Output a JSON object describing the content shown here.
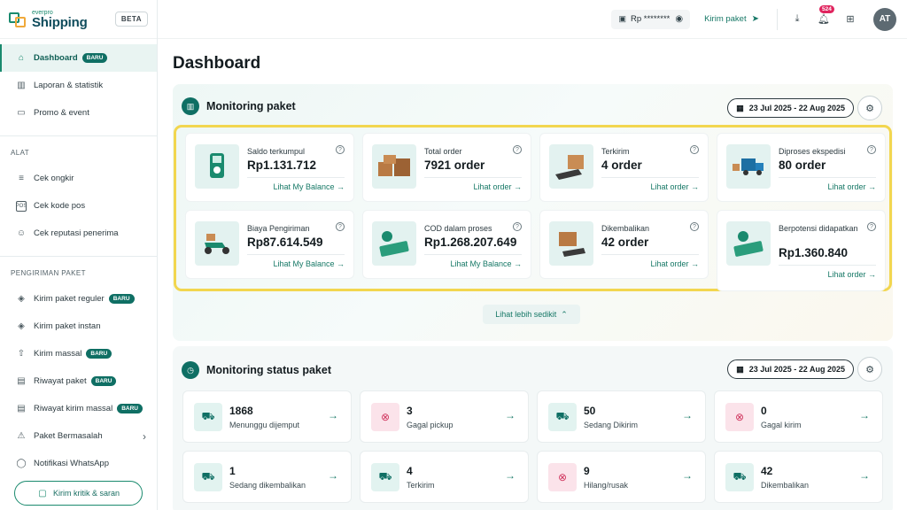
{
  "brand": {
    "small": "everpro",
    "name": "Shipping",
    "badge": "BETA"
  },
  "sidebar": {
    "main_items": [
      {
        "label": "Dashboard",
        "badge": "BARU",
        "icon": "home-icon"
      },
      {
        "label": "Laporan & statistik",
        "icon": "bar-chart-icon"
      },
      {
        "label": "Promo & event",
        "icon": "ticket-icon"
      }
    ],
    "alat_title": "ALAT",
    "alat_items": [
      {
        "label": "Cek ongkir",
        "icon": "calculator-icon"
      },
      {
        "label": "Cek kode pos",
        "icon": "pos-icon"
      },
      {
        "label": "Cek reputasi penerima",
        "icon": "user-search-icon"
      }
    ],
    "pengiriman_title": "PENGIRIMAN PAKET",
    "pengiriman_items": [
      {
        "label": "Kirim paket reguler",
        "badge": "BARU",
        "icon": "box-icon"
      },
      {
        "label": "Kirim paket instan",
        "icon": "box-fast-icon"
      },
      {
        "label": "Kirim massal",
        "badge": "BARU",
        "icon": "upload-file-icon"
      },
      {
        "label": "Riwayat paket",
        "badge": "BARU",
        "icon": "history-icon"
      },
      {
        "label": "Riwayat kirim massal",
        "badge": "BARU",
        "icon": "history-list-icon"
      },
      {
        "label": "Paket Bermasalah",
        "icon": "warning-icon"
      },
      {
        "label": "Notifikasi WhatsApp",
        "icon": "whatsapp-icon"
      }
    ],
    "feedback_label": "Kirim kritik & saran"
  },
  "topbar": {
    "balance": "Rp ********",
    "kirim_label": "Kirim paket",
    "notif_count": "524",
    "avatar_initials": "AT"
  },
  "page_title": "Dashboard",
  "monitoring": {
    "title": "Monitoring paket",
    "date_range": "23 Jul 2025 - 22 Aug 2025",
    "cards": [
      {
        "label": "Saldo terkumpul",
        "value": "Rp1.131.712",
        "link": "Lihat My Balance",
        "icon": "payment-terminal-icon"
      },
      {
        "label": "Total order",
        "value": "7921 order",
        "link": "Lihat order",
        "icon": "boxes-icon"
      },
      {
        "label": "Terkirim",
        "value": "4 order",
        "link": "Lihat order",
        "icon": "package-delivered-icon"
      },
      {
        "label": "Diproses ekspedisi",
        "value": "80 order",
        "link": "Lihat order",
        "icon": "truck-icon"
      },
      {
        "label": "Biaya Pengiriman",
        "value": "Rp87.614.549",
        "link": "Lihat My Balance",
        "icon": "scooter-icon"
      },
      {
        "label": "COD dalam proses",
        "value": "Rp1.268.207.649",
        "link": "Lihat My Balance",
        "icon": "cash-icon"
      },
      {
        "label": "Dikembalikan",
        "value": "42 order",
        "link": "Lihat order",
        "icon": "package-return-icon"
      },
      {
        "label": "Berpotensi didapatkan",
        "value": "Rp1.360.840",
        "link": "Lihat order",
        "icon": "cash-hand-icon"
      }
    ],
    "less_label": "Lihat lebih sedikit"
  },
  "status": {
    "title": "Monitoring status paket",
    "date_range": "23 Jul 2025 - 22 Aug 2025",
    "cards": [
      {
        "num": "1868",
        "label": "Menunggu dijemput",
        "kind": "ok"
      },
      {
        "num": "3",
        "label": "Gagal pickup",
        "kind": "bad"
      },
      {
        "num": "50",
        "label": "Sedang Dikirim",
        "kind": "ok"
      },
      {
        "num": "0",
        "label": "Gagal kirim",
        "kind": "bad"
      },
      {
        "num": "1",
        "label": "Sedang dikembalikan",
        "kind": "ok"
      },
      {
        "num": "4",
        "label": "Terkirim",
        "kind": "ok"
      },
      {
        "num": "9",
        "label": "Hilang/rusak",
        "kind": "bad"
      },
      {
        "num": "42",
        "label": "Dikembalikan",
        "kind": "ok"
      }
    ]
  }
}
